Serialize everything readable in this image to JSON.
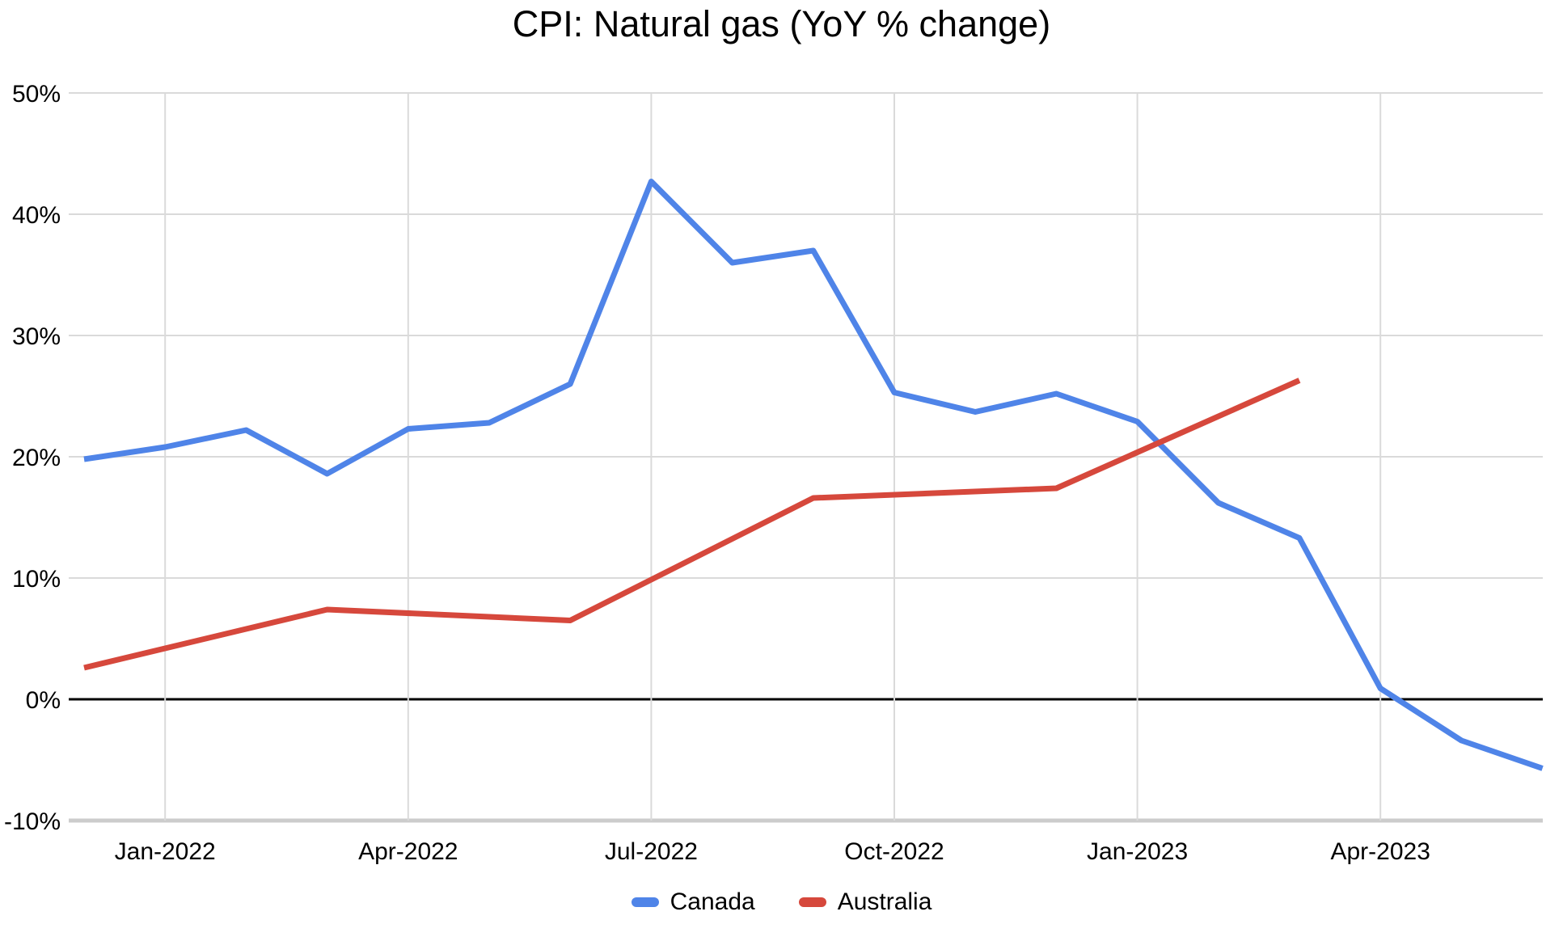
{
  "chart_data": {
    "type": "line",
    "title": "CPI: Natural gas (YoY % change)",
    "xlabel": "",
    "ylabel": "",
    "x_categories": [
      "Dec-2021",
      "Jan-2022",
      "Feb-2022",
      "Mar-2022",
      "Apr-2022",
      "May-2022",
      "Jun-2022",
      "Jul-2022",
      "Aug-2022",
      "Sep-2022",
      "Oct-2022",
      "Nov-2022",
      "Dec-2022",
      "Jan-2023",
      "Feb-2023",
      "Mar-2023",
      "Apr-2023",
      "May-2023",
      "Jun-2023"
    ],
    "x_tick_indices": [
      1,
      4,
      7,
      10,
      13,
      16
    ],
    "x_tick_labels": [
      "Jan-2022",
      "Apr-2022",
      "Jul-2022",
      "Oct-2022",
      "Jan-2023",
      "Apr-2023"
    ],
    "y_tick_values": [
      50,
      40,
      30,
      20,
      10,
      0,
      -10
    ],
    "y_tick_labels": [
      "50%",
      "40%",
      "30%",
      "20%",
      "10%",
      "0%",
      "-10%"
    ],
    "ylim": [
      -10,
      50
    ],
    "grid": true,
    "zero_baseline": true,
    "legend_position": "bottom",
    "series": [
      {
        "name": "Canada",
        "color": "#4f84e8",
        "frequency": "monthly",
        "values": [
          19.8,
          20.8,
          22.2,
          18.6,
          22.3,
          22.8,
          26.0,
          42.7,
          36.0,
          37.0,
          25.3,
          23.7,
          25.2,
          22.9,
          16.2,
          13.3,
          0.9,
          -3.4,
          -5.7
        ]
      },
      {
        "name": "Australia",
        "color": "#d6483c",
        "frequency": "quarterly",
        "values": [
          2.6,
          null,
          null,
          7.4,
          null,
          null,
          6.5,
          null,
          null,
          16.6,
          null,
          null,
          17.4,
          null,
          null,
          26.3,
          null,
          null,
          null
        ]
      }
    ]
  }
}
